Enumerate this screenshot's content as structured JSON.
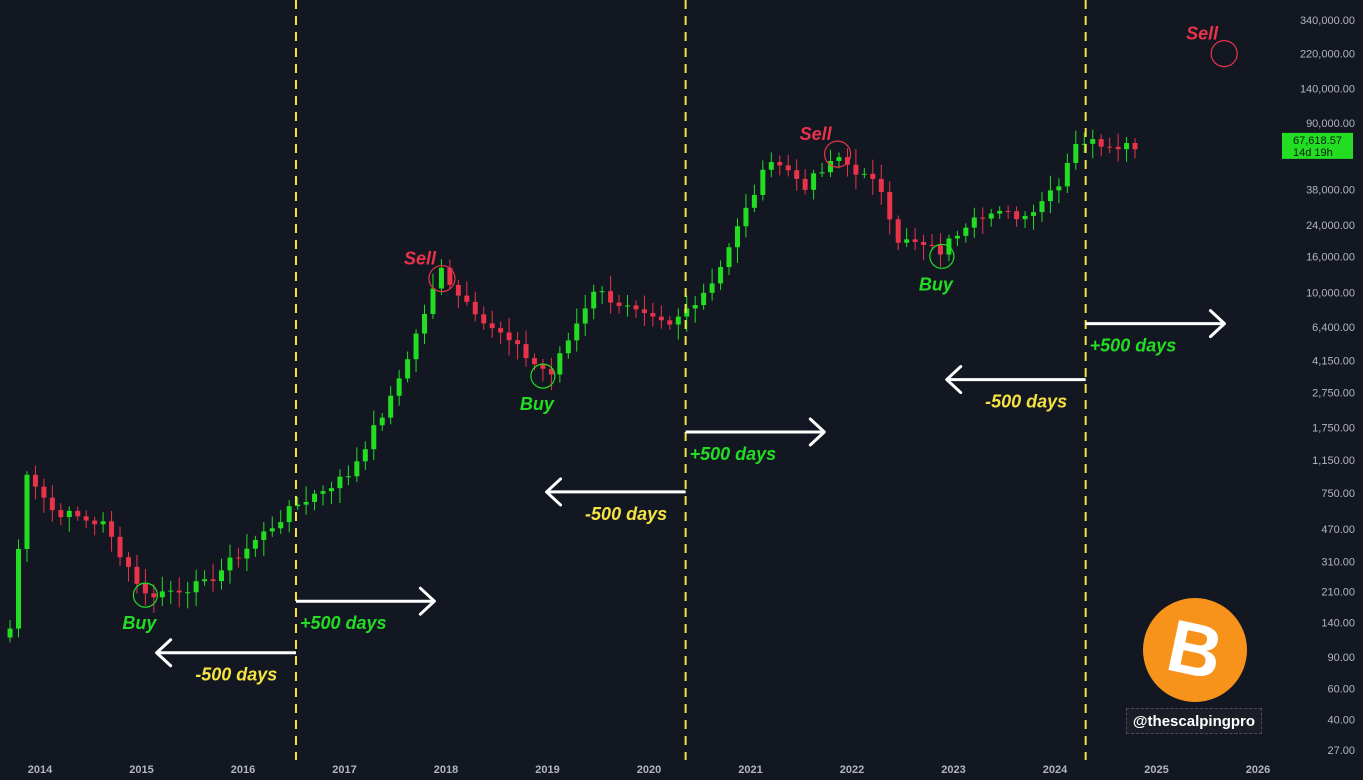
{
  "chart_data": {
    "type": "candlestick",
    "title": "",
    "xlabel": "",
    "ylabel": "",
    "y_scale": "log",
    "ylim": [
      27,
      340000
    ],
    "grid": false,
    "y_ticks": [
      340000,
      220000,
      140000,
      90000,
      38000,
      24000,
      16000,
      10000,
      6400,
      4150,
      2750,
      1750,
      1150,
      750,
      470,
      310,
      210,
      140,
      90,
      60,
      40,
      27
    ],
    "y_tick_labels": [
      "340,000.00",
      "220,000.00",
      "140,000.00",
      "90,000.00",
      "38,000.00",
      "24,000.00",
      "16,000.00",
      "10,000.00",
      "6,400.00",
      "4,150.00",
      "2,750.00",
      "1,750.00",
      "1,150.00",
      "750.00",
      "470.00",
      "310.00",
      "210.00",
      "140.00",
      "90.00",
      "60.00",
      "40.00",
      "27.00"
    ],
    "x_ticks": [
      "2014",
      "2015",
      "2016",
      "2017",
      "2018",
      "2019",
      "2020",
      "2021",
      "2022",
      "2023",
      "2024",
      "2025",
      "2026"
    ],
    "current_price": {
      "label": "67,618.57",
      "countdown": "14d 19h",
      "value": 67618.57
    },
    "candle_anchors": [
      {
        "date": "2013-09",
        "value": 130
      },
      {
        "date": "2013-11",
        "value": 1000
      },
      {
        "date": "2014-02",
        "value": 600
      },
      {
        "date": "2014-08",
        "value": 500
      },
      {
        "date": "2015-01",
        "value": 200
      },
      {
        "date": "2015-08",
        "value": 230
      },
      {
        "date": "2016-07",
        "value": 650
      },
      {
        "date": "2017-01",
        "value": 950
      },
      {
        "date": "2017-06",
        "value": 2500
      },
      {
        "date": "2017-12",
        "value": 13500
      },
      {
        "date": "2018-02",
        "value": 10000
      },
      {
        "date": "2018-06",
        "value": 6400
      },
      {
        "date": "2018-11",
        "value": 4000
      },
      {
        "date": "2019-01",
        "value": 3500
      },
      {
        "date": "2019-06",
        "value": 10500
      },
      {
        "date": "2019-12",
        "value": 7200
      },
      {
        "date": "2020-03",
        "value": 6400
      },
      {
        "date": "2020-08",
        "value": 11500
      },
      {
        "date": "2020-12",
        "value": 29000
      },
      {
        "date": "2021-03",
        "value": 58000
      },
      {
        "date": "2021-07",
        "value": 40000
      },
      {
        "date": "2021-11",
        "value": 57000
      },
      {
        "date": "2022-04",
        "value": 38000
      },
      {
        "date": "2022-06",
        "value": 20000
      },
      {
        "date": "2022-11",
        "value": 17000
      },
      {
        "date": "2023-03",
        "value": 28000
      },
      {
        "date": "2023-09",
        "value": 27000
      },
      {
        "date": "2024-01",
        "value": 42000
      },
      {
        "date": "2024-03",
        "value": 71000
      },
      {
        "date": "2024-10",
        "value": 67618
      }
    ],
    "halving_lines": [
      "2016-07-09",
      "2020-05-11",
      "2024-04-20"
    ],
    "annotations": [
      {
        "text": "Buy",
        "type": "buy",
        "date": "2015-01-15",
        "value": 200
      },
      {
        "text": "Sell",
        "type": "sell",
        "date": "2017-12-17",
        "value": 12000
      },
      {
        "text": "Buy",
        "type": "buy",
        "date": "2018-12-15",
        "value": 3400
      },
      {
        "text": "Sell",
        "type": "sell",
        "date": "2021-11-10",
        "value": 60000
      },
      {
        "text": "Buy",
        "type": "buy",
        "date": "2022-11-20",
        "value": 16000
      },
      {
        "text": "Sell",
        "type": "sell",
        "date": "2025-09-01",
        "value": 220000
      }
    ],
    "arrows": [
      {
        "text": "-500 days",
        "direction": "left",
        "from": "2016-07-09",
        "to": "2015-02-25",
        "value": 95
      },
      {
        "text": "+500 days",
        "direction": "right",
        "from": "2016-07-09",
        "to": "2017-11-20",
        "value": 185
      },
      {
        "text": "-500 days",
        "direction": "left",
        "from": "2020-05-11",
        "to": "2018-12-28",
        "value": 760
      },
      {
        "text": "+500 days",
        "direction": "right",
        "from": "2020-05-11",
        "to": "2021-09-23",
        "value": 1650
      },
      {
        "text": "-500 days",
        "direction": "left",
        "from": "2024-04-20",
        "to": "2022-12-07",
        "value": 3250
      },
      {
        "text": "+500 days",
        "direction": "right",
        "from": "2024-04-20",
        "to": "2025-09-02",
        "value": 6700
      }
    ]
  },
  "colors": {
    "background": "#131722",
    "up_candle": "#22dd22",
    "down_candle": "#e8334a",
    "halving_line": "#f5e342",
    "buy": "#22dd22",
    "sell": "#e8334a",
    "minus_label": "#f5e342",
    "plus_label": "#22dd22",
    "arrow": "#ffffff",
    "logo": "#f7931a"
  },
  "logo": {
    "glyph": "B",
    "icon": "bitcoin-logo-icon"
  },
  "watermark": "@thescalpingpro"
}
